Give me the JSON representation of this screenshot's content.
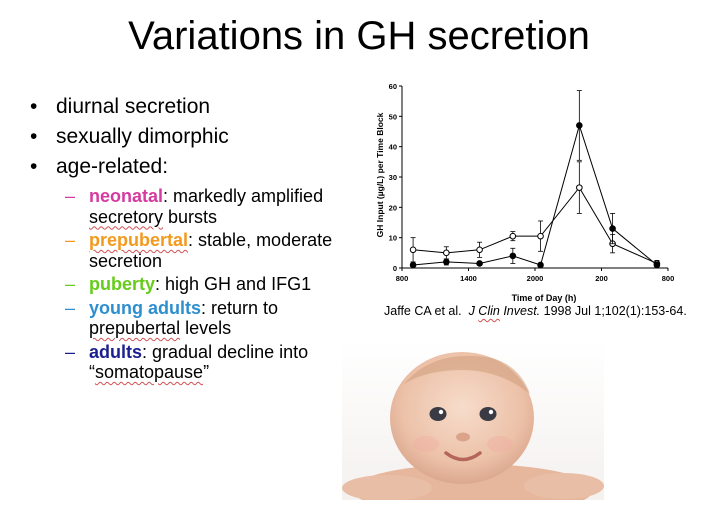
{
  "title": "Variations in GH secretion",
  "bullets": [
    "diurnal secretion",
    "sexually dimorphic",
    "age-related:"
  ],
  "bullet_glyph": "•",
  "dash_glyph": "–",
  "sub_items": [
    {
      "term": "neonatal",
      "rest_1": ": markedly amplified ",
      "squiggle": "secretory",
      "rest_2": " bursts",
      "color": "#d63aa0"
    },
    {
      "term": "prepubertal",
      "rest_1": ": stable, moderate secretion",
      "color": "#f39a1e"
    },
    {
      "term": "puberty",
      "rest_1": ": high GH and IFG1",
      "color": "#66cc1a"
    },
    {
      "term": "young adults",
      "rest_1": ": return to ",
      "squiggle": "prepubertal",
      "rest_2": " levels",
      "color": "#2e8fcf"
    },
    {
      "term": "adults",
      "rest_1": ": gradual decline into “",
      "squiggle": "somatopause",
      "rest_2": "”",
      "color": "#1c1f8f"
    }
  ],
  "citation": {
    "authors": "Jaffe CA et al.",
    "journal_a": "J",
    "journal_squiggle": "Clin",
    "journal_b": "Invest.",
    "ref": "1998 Jul 1;102(1):153-64."
  },
  "photo": {
    "subject": "smiling baby lying on stomach",
    "icon": "baby-photo"
  },
  "chart_data": {
    "type": "line",
    "xlabel": "Time of Day (h)",
    "ylabel": "GH Input (µg/L) per Time Block",
    "x_tick_labels": [
      "800",
      "1400",
      "2000",
      "200",
      "800"
    ],
    "x_tick_values": [
      0,
      6,
      12,
      18,
      24
    ],
    "xlim": [
      0,
      24
    ],
    "y_tick_labels": [
      "0",
      "10",
      "20",
      "30",
      "40",
      "50",
      "60"
    ],
    "ylim": [
      0,
      60
    ],
    "x": [
      1,
      4,
      7,
      10,
      12.5,
      16,
      19,
      23
    ],
    "series": [
      {
        "marker": "open",
        "values": [
          6,
          5,
          6,
          10.5,
          10.5,
          26.5,
          8,
          1.5
        ],
        "err": [
          4,
          2,
          2.5,
          1.5,
          5,
          8.5,
          3,
          1
        ]
      },
      {
        "marker": "filled",
        "values": [
          1,
          2,
          1.5,
          4,
          1,
          47,
          13,
          1
        ],
        "err": [
          0,
          1,
          0,
          2.5,
          0,
          11.5,
          5,
          1
        ]
      }
    ],
    "grid": false,
    "legend": "none"
  }
}
